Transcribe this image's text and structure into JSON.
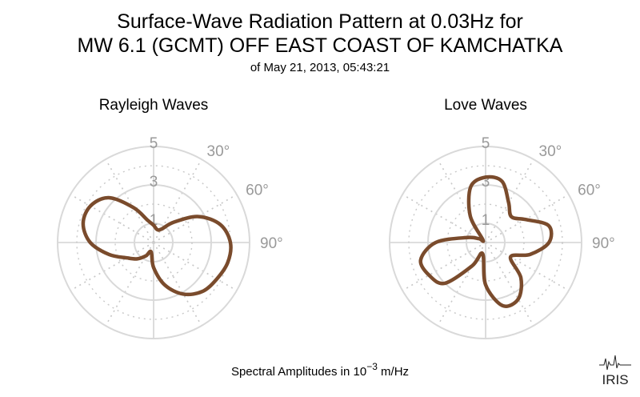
{
  "title_line1": "Surface-Wave Radiation Pattern at 0.03Hz for",
  "title_line2": "MW 6.1 (GCMT) OFF EAST COAST OF KAMCHATKA",
  "subtitle": "of May 21, 2013, 05:43:21",
  "footer": {
    "prefix": "Spectral Amplitudes in ",
    "base": "10",
    "exponent": "−3",
    "unit": " m/Hz"
  },
  "logo_text": "IRIS",
  "colors": {
    "pattern": "#7a4b2c",
    "grid": "#d9d9d9",
    "grid_dotted": "#c8c8c8",
    "tick_label": "#999999"
  },
  "chart_data": [
    {
      "type": "polar-line",
      "title": "Rayleigh Waves",
      "radial_ticks": [
        1,
        3,
        5
      ],
      "radial_max": 5,
      "angle_tick_labels": [
        "30°",
        "60°",
        "90°"
      ],
      "angle_ticks_deg": [
        30,
        60,
        90
      ],
      "spoke_step_deg": 30,
      "pattern": {
        "angle_deg": [
          0,
          15,
          30,
          45,
          60,
          75,
          90,
          105,
          120,
          135,
          150,
          165,
          180,
          195,
          210,
          225,
          240,
          255,
          270,
          285,
          300,
          315,
          330,
          345
        ],
        "amplitude": [
          0.9,
          0.7,
          0.8,
          1.5,
          2.7,
          3.6,
          4.0,
          4.0,
          3.8,
          3.6,
          3.1,
          2.3,
          1.3,
          0.5,
          0.8,
          1.2,
          1.6,
          2.4,
          3.3,
          3.8,
          3.8,
          3.3,
          2.1,
          1.2
        ]
      }
    },
    {
      "type": "polar-line",
      "title": "Love Waves",
      "radial_ticks": [
        1,
        3,
        5
      ],
      "radial_max": 5,
      "angle_tick_labels": [
        "30°",
        "60°",
        "90°"
      ],
      "angle_ticks_deg": [
        30,
        60,
        90
      ],
      "spoke_step_deg": 30,
      "pattern": {
        "angle_deg": [
          0,
          15,
          30,
          45,
          60,
          75,
          90,
          105,
          120,
          135,
          150,
          165,
          180,
          195,
          210,
          225,
          240,
          255,
          270,
          285,
          300,
          315,
          330,
          345
        ],
        "amplitude": [
          3.4,
          3.3,
          2.4,
          1.9,
          2.4,
          3.4,
          3.3,
          2.4,
          1.5,
          2.6,
          3.4,
          3.4,
          2.2,
          0.6,
          1.4,
          3.0,
          3.4,
          3.5,
          2.6,
          1.0,
          0.4,
          0.2,
          1.6,
          3.0
        ]
      }
    }
  ]
}
